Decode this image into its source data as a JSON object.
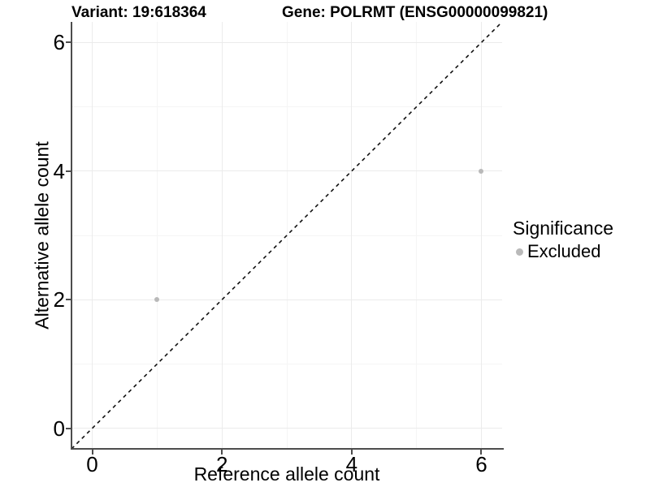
{
  "chart_data": {
    "type": "scatter",
    "title_left": "Variant: 19:618364",
    "title_right": "Gene: POLRMT (ENSG00000099821)",
    "xlabel": "Reference allele count",
    "ylabel": "Alternative allele count",
    "xlim": [
      -0.32,
      6.32
    ],
    "ylim": [
      -0.32,
      6.32
    ],
    "x_major_ticks": [
      0,
      2,
      4,
      6
    ],
    "y_major_ticks": [
      0,
      2,
      4,
      6
    ],
    "x_minor_ticks": [
      1,
      3,
      5
    ],
    "y_minor_ticks": [
      1,
      3,
      5
    ],
    "grid": true,
    "series": [
      {
        "name": "Excluded",
        "color": "#b9b9b9",
        "points": [
          {
            "x": 1,
            "y": 2
          },
          {
            "x": 6,
            "y": 4
          }
        ]
      }
    ],
    "reference_line": {
      "type": "identity",
      "equation": "y = x",
      "style": "dashed",
      "color": "#111111"
    },
    "legend": {
      "position": "right",
      "title": "Significance",
      "items": [
        {
          "label": "Excluded",
          "color": "#b9b9b9"
        }
      ]
    },
    "colors": {
      "axis": "#4d4d4d",
      "grid_major": "#ebebeb",
      "grid_minor": "#f5f5f5",
      "text": "#000000",
      "background": "#ffffff"
    }
  }
}
